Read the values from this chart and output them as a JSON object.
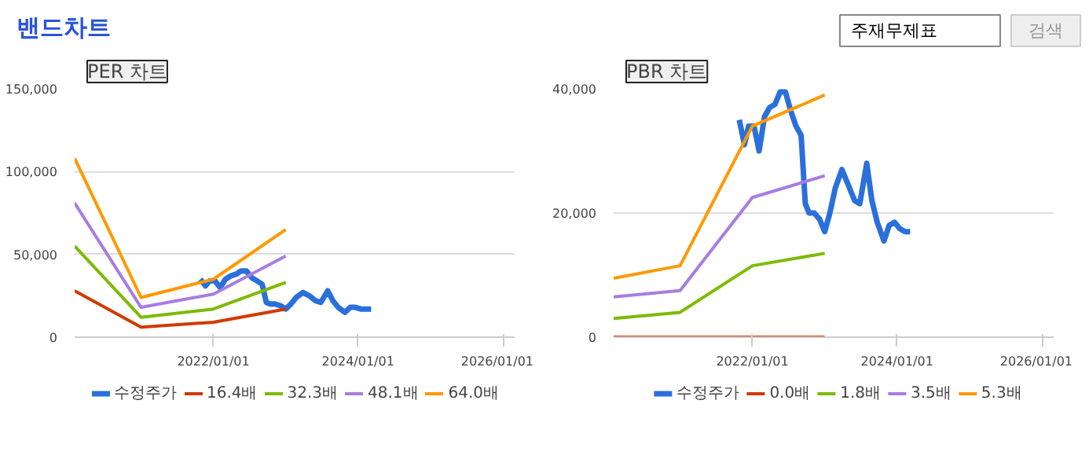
{
  "chart_data": [
    {
      "type": "other",
      "title": "밴드차트",
      "annotations": [
        "주재무제표",
        "검색"
      ]
    },
    {
      "type": "line",
      "title": "PER 차트",
      "marker": "none",
      "line_style": "solid",
      "grid": "y",
      "legend": "bottom",
      "xlim": [
        "2020-02-01",
        "2026-03-01"
      ],
      "ylim": [
        0,
        150000
      ],
      "xticks": [
        {
          "value": "2022-01-01",
          "label": "2022/01/01"
        },
        {
          "value": "2024-01-01",
          "label": "2024/01/01"
        },
        {
          "value": "2026-01-01",
          "label": "2026/01/01"
        }
      ],
      "yticks": [
        {
          "value": 0,
          "label": "0"
        },
        {
          "value": 50000,
          "label": "50,000"
        },
        {
          "value": 100000,
          "label": "100,000"
        },
        {
          "value": 150000,
          "label": "150,000"
        }
      ],
      "series": [
        {
          "name": "수정주가",
          "color": "#2a6fdb",
          "x": [
            "2021-10-27",
            "2021-11-22",
            "2021-12-13",
            "2022-01-09",
            "2022-02-04",
            "2022-03-03",
            "2022-03-29",
            "2022-04-25",
            "2022-05-21",
            "2022-06-17",
            "2022-07-13",
            "2022-08-09",
            "2022-09-04",
            "2022-09-25",
            "2022-10-14",
            "2022-11-09",
            "2022-12-06",
            "2023-01-01",
            "2023-01-27",
            "2023-02-23",
            "2023-03-29",
            "2023-04-30",
            "2023-06-01",
            "2023-06-27",
            "2023-08-01",
            "2023-08-27",
            "2023-09-23",
            "2023-10-27",
            "2023-11-22",
            "2023-12-19",
            "2024-01-14",
            "2024-02-10",
            "2024-03-07"
          ],
          "values": [
            35000,
            31000,
            34000,
            34000,
            30000,
            35000,
            37000,
            38000,
            40000,
            40000,
            36000,
            34000,
            32000,
            21000,
            20000,
            20000,
            19000,
            17000,
            20000,
            24000,
            27000,
            25000,
            22000,
            21000,
            28000,
            22000,
            18000,
            15000,
            18000,
            18000,
            17000,
            17000,
            17000
          ]
        },
        {
          "name": "16.4배",
          "color": "#d03a00",
          "x": [
            "2020-02-01",
            "2021-01-01",
            "2022-01-01",
            "2023-01-01"
          ],
          "values": [
            28000,
            6000,
            9000,
            17000
          ]
        },
        {
          "name": "32.3배",
          "color": "#7cbb00",
          "x": [
            "2020-02-01",
            "2021-01-01",
            "2022-01-01",
            "2023-01-01"
          ],
          "values": [
            55000,
            12000,
            17000,
            33000
          ]
        },
        {
          "name": "48.1배",
          "color": "#a77de0",
          "x": [
            "2020-02-01",
            "2021-01-01",
            "2022-01-01",
            "2023-01-01"
          ],
          "values": [
            81000,
            18000,
            26000,
            49000
          ]
        },
        {
          "name": "64.0배",
          "color": "#ff9900",
          "x": [
            "2020-02-01",
            "2021-01-01",
            "2022-01-01",
            "2023-01-01"
          ],
          "values": [
            108000,
            24000,
            35000,
            65000
          ]
        }
      ]
    },
    {
      "type": "line",
      "title": "PBR 차트",
      "marker": "none",
      "line_style": "solid",
      "grid": "y",
      "legend": "bottom",
      "xlim": [
        "2020-02-01",
        "2026-03-01"
      ],
      "ylim": [
        0,
        40000
      ],
      "xticks": [
        {
          "value": "2022-01-01",
          "label": "2022/01/01"
        },
        {
          "value": "2024-01-01",
          "label": "2024/01/01"
        },
        {
          "value": "2026-01-01",
          "label": "2026/01/01"
        }
      ],
      "yticks": [
        {
          "value": 0,
          "label": "0"
        },
        {
          "value": 20000,
          "label": "20,000"
        },
        {
          "value": 40000,
          "label": "40,000"
        }
      ],
      "series": [
        {
          "name": "수정주가",
          "color": "#2a6fdb",
          "x": [
            "2021-10-27",
            "2021-11-22",
            "2021-12-13",
            "2022-01-09",
            "2022-02-04",
            "2022-03-03",
            "2022-03-29",
            "2022-04-25",
            "2022-05-21",
            "2022-06-17",
            "2022-07-13",
            "2022-08-09",
            "2022-09-04",
            "2022-09-25",
            "2022-10-14",
            "2022-11-09",
            "2022-12-06",
            "2023-01-01",
            "2023-01-27",
            "2023-02-23",
            "2023-03-29",
            "2023-04-30",
            "2023-06-01",
            "2023-06-27",
            "2023-08-01",
            "2023-08-27",
            "2023-09-23",
            "2023-10-27",
            "2023-11-22",
            "2023-12-19",
            "2024-01-14",
            "2024-02-10",
            "2024-03-07"
          ],
          "values": [
            35000,
            31000,
            34000,
            34000,
            30000,
            35500,
            37000,
            37500,
            39500,
            39500,
            36500,
            34000,
            32500,
            21500,
            20000,
            20000,
            19000,
            17000,
            20000,
            24000,
            27000,
            24500,
            22000,
            21500,
            28000,
            22000,
            18500,
            15500,
            18000,
            18500,
            17500,
            17000,
            17000
          ]
        },
        {
          "name": "0.0배",
          "color": "#d03a00",
          "x": [
            "2020-02-01",
            "2021-01-01",
            "2022-01-01",
            "2023-01-01"
          ],
          "values": [
            0,
            0,
            0,
            0
          ]
        },
        {
          "name": "1.8배",
          "color": "#7cbb00",
          "x": [
            "2020-02-01",
            "2021-01-01",
            "2022-01-01",
            "2023-01-01"
          ],
          "values": [
            3000,
            4000,
            11500,
            13500
          ]
        },
        {
          "name": "3.5배",
          "color": "#a77de0",
          "x": [
            "2020-02-01",
            "2021-01-01",
            "2022-01-01",
            "2023-01-01"
          ],
          "values": [
            6500,
            7500,
            22500,
            26000
          ]
        },
        {
          "name": "5.3배",
          "color": "#ff9900",
          "x": [
            "2020-02-01",
            "2021-01-01",
            "2022-01-01",
            "2023-01-01"
          ],
          "values": [
            9500,
            11500,
            34000,
            39000
          ]
        }
      ]
    }
  ]
}
